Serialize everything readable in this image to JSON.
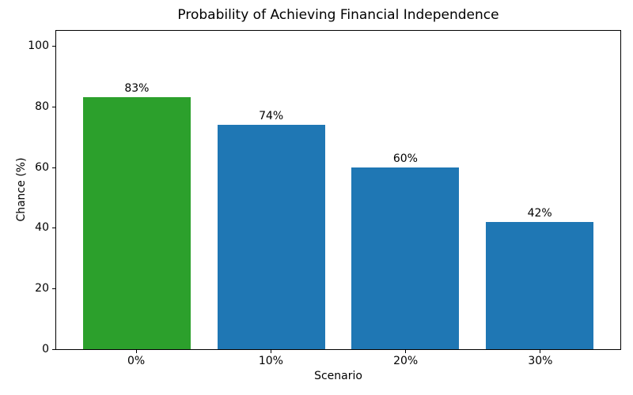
{
  "chart_data": {
    "type": "bar",
    "title": "Probability of Achieving Financial Independence",
    "xlabel": "Scenario",
    "ylabel": "Chance (%)",
    "categories": [
      "0%",
      "10%",
      "20%",
      "30%"
    ],
    "values": [
      83,
      74,
      60,
      42
    ],
    "bar_labels": [
      "83%",
      "74%",
      "60%",
      "42%"
    ],
    "bar_colors": [
      "#2ca02c",
      "#1f77b4",
      "#1f77b4",
      "#1f77b4"
    ],
    "yticks": [
      0,
      20,
      40,
      60,
      80,
      100
    ],
    "ytick_labels": [
      "0",
      "20",
      "40",
      "60",
      "80",
      "100"
    ],
    "ylim": [
      0,
      105
    ],
    "grid": false,
    "legend": "none",
    "frame": true,
    "colors": {
      "highlight_green": "#2ca02c",
      "default_blue": "#1f77b4",
      "axis_black": "#000000",
      "background_white": "#ffffff"
    }
  }
}
